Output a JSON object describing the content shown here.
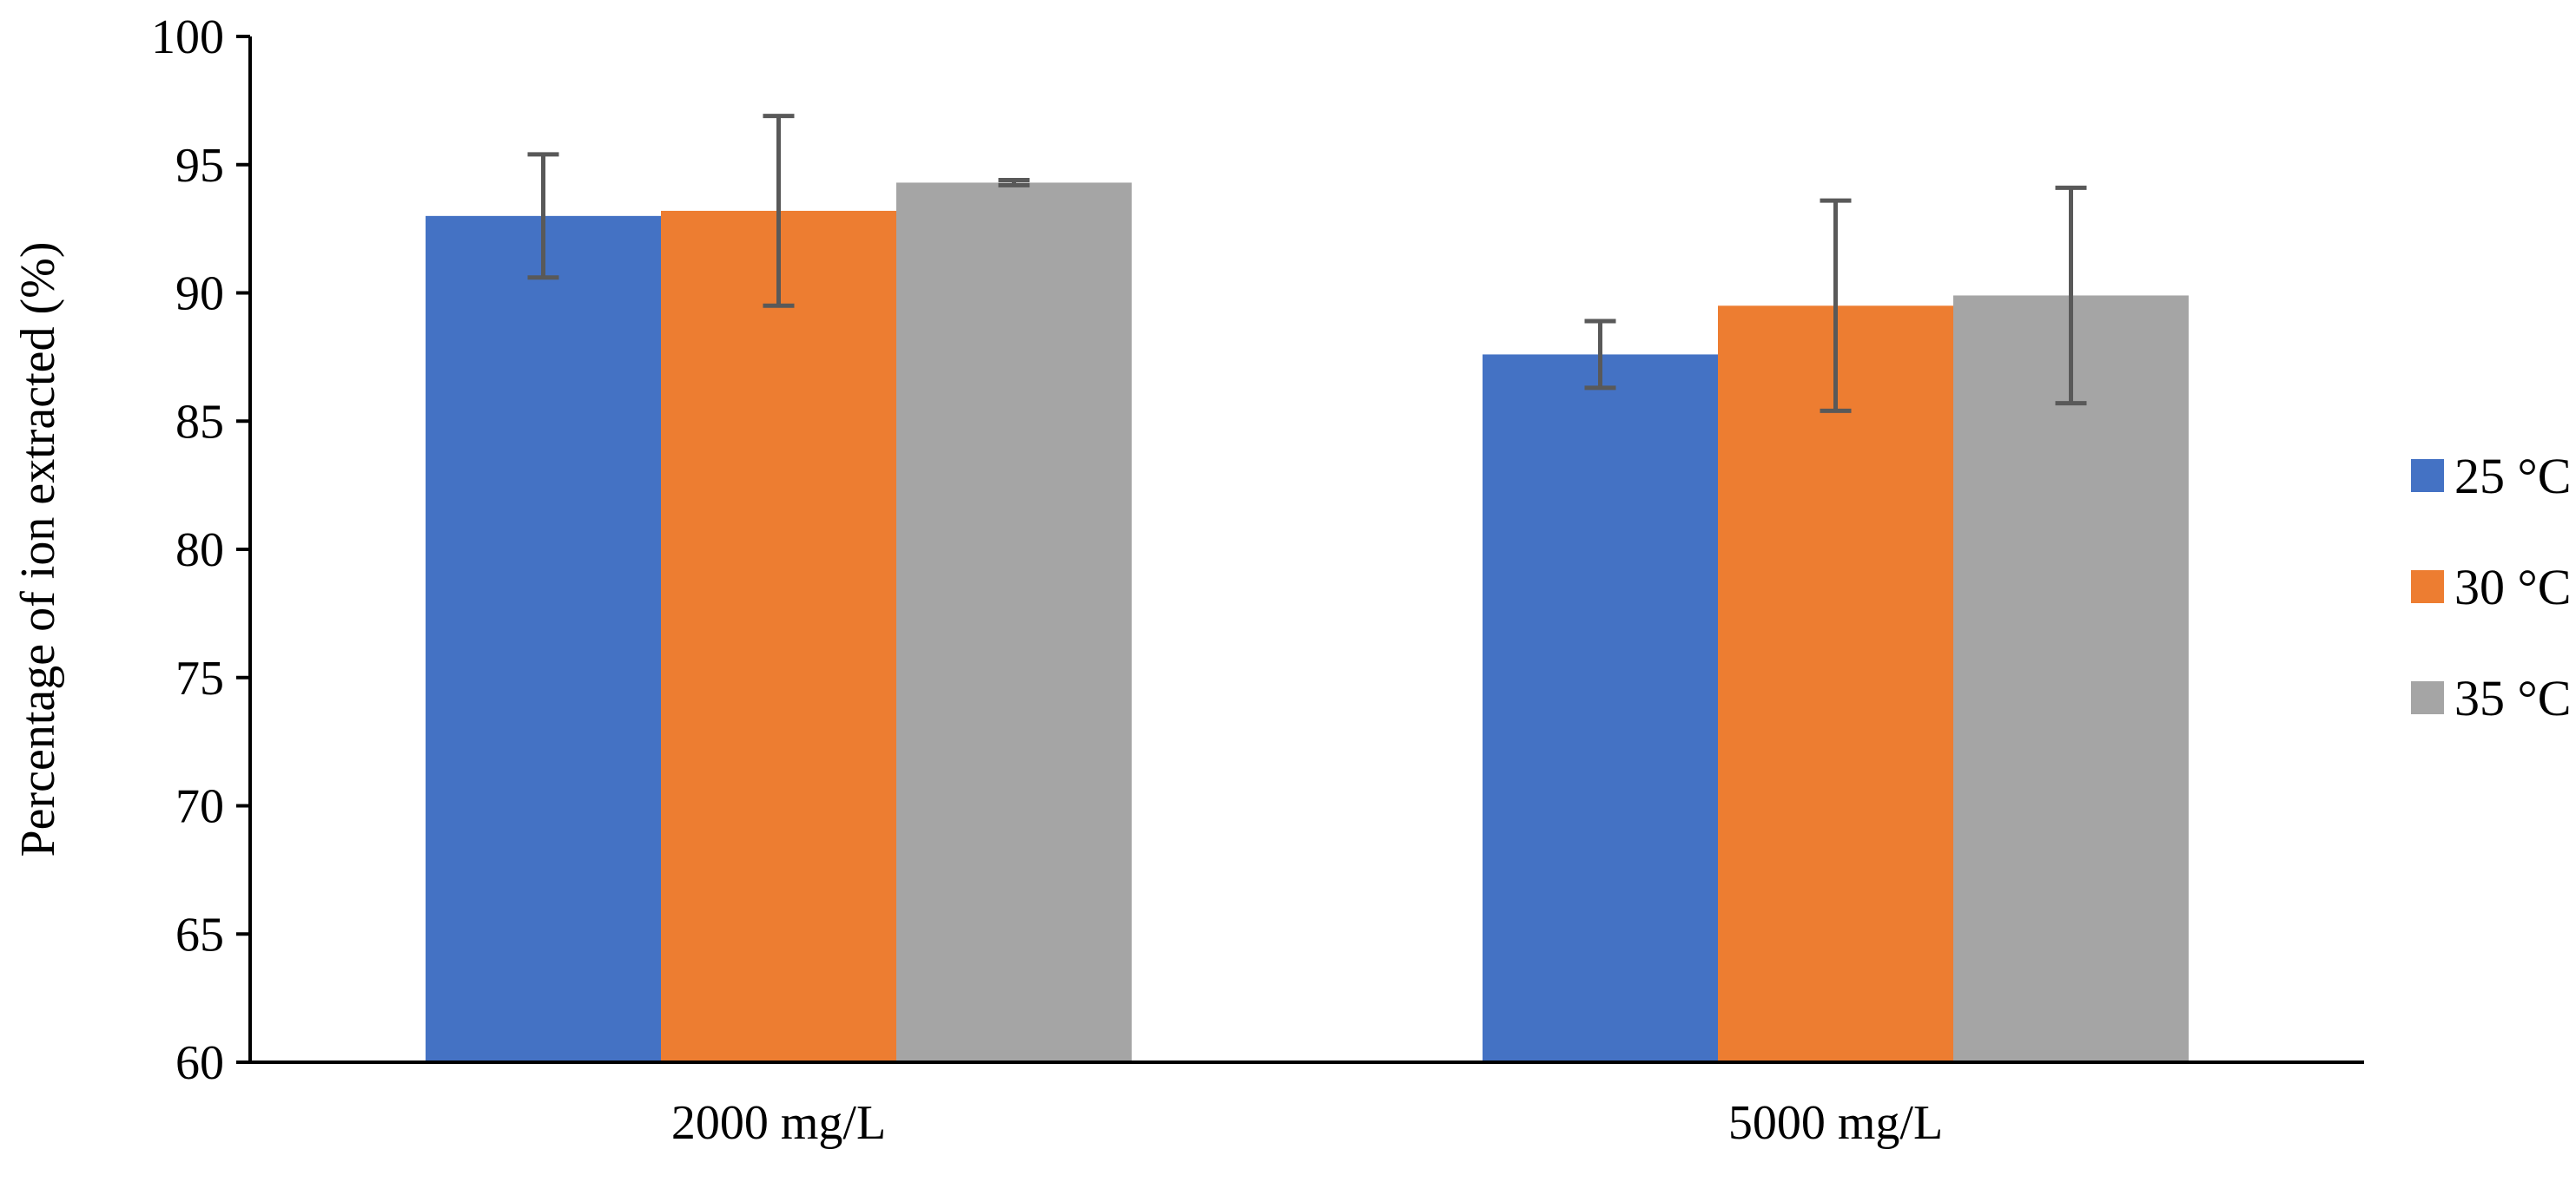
{
  "chart_data": {
    "type": "bar",
    "title": "",
    "xlabel": "",
    "ylabel": "Percentage of ion extracted (%)",
    "ylim": [
      60,
      100
    ],
    "yticks": [
      60,
      65,
      70,
      75,
      80,
      85,
      90,
      95,
      100
    ],
    "categories": [
      "2000 mg/L",
      "5000 mg/L"
    ],
    "series": [
      {
        "name": "25 °C",
        "color": "#4472C4",
        "values": [
          93.0,
          87.6
        ],
        "errors": [
          2.4,
          1.3
        ]
      },
      {
        "name": "30 °C",
        "color": "#ED7D31",
        "values": [
          93.2,
          89.5
        ],
        "errors": [
          3.7,
          4.1
        ]
      },
      {
        "name": "35 °C",
        "color": "#A5A5A5",
        "values": [
          94.3,
          89.9
        ],
        "errors": [
          0.1,
          4.2
        ]
      }
    ],
    "grid": false,
    "legend": "right"
  }
}
